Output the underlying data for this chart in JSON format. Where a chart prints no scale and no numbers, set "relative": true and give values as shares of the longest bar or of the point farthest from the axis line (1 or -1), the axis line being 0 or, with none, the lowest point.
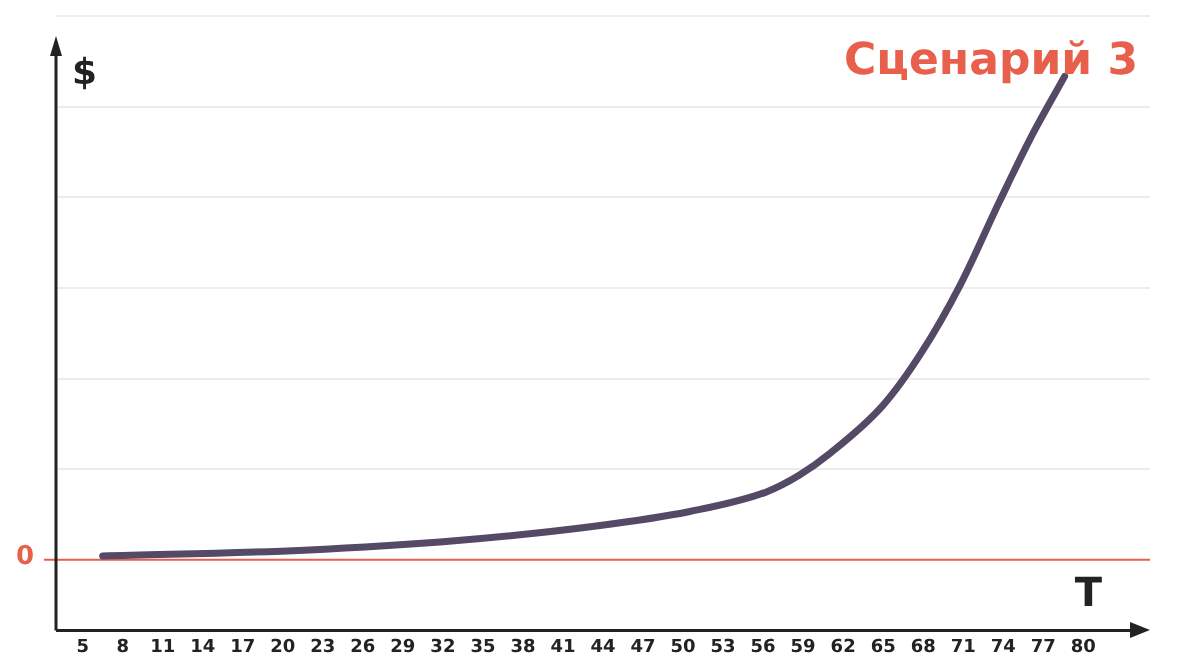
{
  "chart_data": {
    "type": "line",
    "title": "Сценарий 3",
    "xlabel": "T",
    "ylabel": "$",
    "relative": true,
    "grid": "y",
    "marker": "none",
    "line_style": "solid",
    "x": [
      6.5,
      21.6,
      33.1,
      43.5,
      50.5,
      56.2,
      58.7,
      61,
      65,
      67.9,
      70.8,
      73.7,
      76,
      78.6
    ],
    "series": [
      {
        "color": "#544a66",
        "values": [
          0.008,
          0.02,
          0.04,
          0.07,
          0.1,
          0.14,
          0.175,
          0.22,
          0.32,
          0.43,
          0.57,
          0.74,
          0.87,
          1
        ]
      }
    ],
    "xlim": [
      3,
      85
    ],
    "xticks": [
      5,
      8,
      11,
      14,
      17,
      20,
      23,
      26,
      29,
      32,
      35,
      38,
      41,
      44,
      47,
      50,
      53,
      56,
      59,
      62,
      65,
      68,
      71,
      74,
      77,
      80
    ],
    "ref_lines": [
      {
        "axis": "y",
        "value": 0,
        "label": "0",
        "color": "#e8604c"
      }
    ]
  }
}
